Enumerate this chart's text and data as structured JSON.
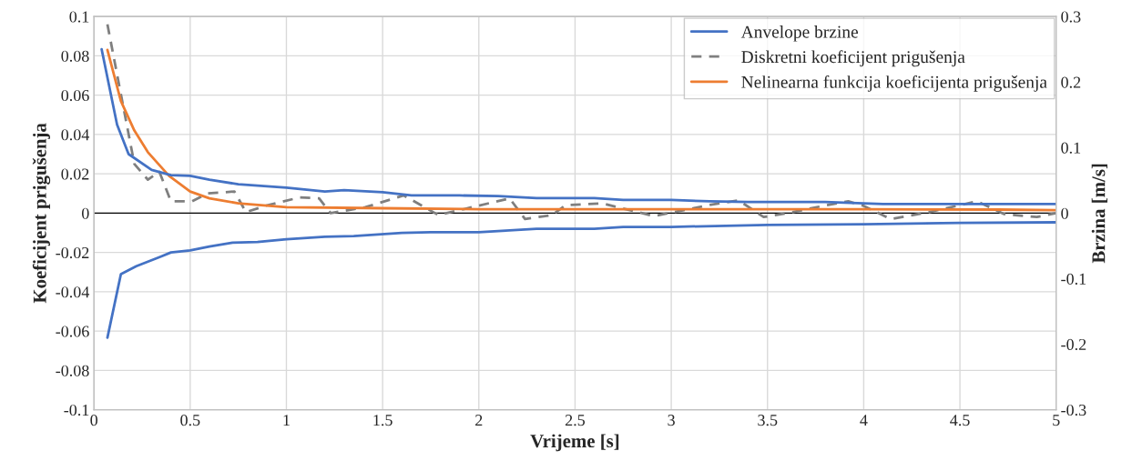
{
  "chart_data": {
    "type": "line",
    "xlabel": "Vrijeme [s]",
    "ylabel": "Koeficijent prigušenja",
    "y2label": "Brzina [m/s]",
    "xlim": [
      0,
      5
    ],
    "xticks": [
      0,
      0.5,
      1,
      1.5,
      2,
      2.5,
      3,
      3.5,
      4,
      4.5,
      5
    ],
    "ylim": [
      -0.1,
      0.1
    ],
    "yticks": [
      {
        "value": -0.1,
        "label": "-0.1"
      },
      {
        "value": -0.08,
        "label": "-0.08"
      },
      {
        "value": -0.06,
        "label": "-0.06"
      },
      {
        "value": -0.04,
        "label": "-0.04"
      },
      {
        "value": -0.02,
        "label": "-0.02"
      },
      0,
      0.02,
      0.04,
      0.06,
      0.08,
      0.1
    ],
    "y2lim": [
      -0.3,
      0.3
    ],
    "y2ticks": [
      {
        "value": -0.3,
        "label": "-0.3"
      },
      {
        "value": -0.2,
        "label": "-0.2"
      },
      {
        "value": -0.1,
        "label": "-0.1"
      },
      0,
      0.1,
      0.2,
      0.3
    ],
    "grid": true,
    "legend": "top right",
    "ref_lines": [
      {
        "axis": "y",
        "value": 0,
        "color": "#000000"
      }
    ],
    "series": [
      {
        "name": "Anvelope brzine",
        "color": "#4472c4",
        "axis": "y2",
        "line_style": "solid",
        "x": [
          0.04,
          0.12,
          0.18,
          0.3,
          0.4,
          0.5,
          0.6,
          0.75,
          0.85,
          1.0,
          1.2,
          1.3,
          1.5,
          1.65,
          1.9,
          2.1,
          2.3,
          2.5,
          2.6,
          2.75,
          3.0,
          3.2,
          3.4,
          3.8,
          4.1,
          4.3,
          4.6,
          5.0
        ],
        "values": [
          0.25,
          0.135,
          0.09,
          0.066,
          0.058,
          0.057,
          0.051,
          0.044,
          0.042,
          0.039,
          0.033,
          0.035,
          0.032,
          0.027,
          0.027,
          0.026,
          0.023,
          0.023,
          0.023,
          0.02,
          0.02,
          0.018,
          0.017,
          0.017,
          0.014,
          0.014,
          0.014,
          0.014
        ]
      },
      {
        "color": "#4472c4",
        "axis": "y2",
        "line_style": "solid",
        "x": [
          0.07,
          0.14,
          0.22,
          0.35,
          0.4,
          0.5,
          0.6,
          0.72,
          0.85,
          1.0,
          1.2,
          1.35,
          1.6,
          1.75,
          2.0,
          2.3,
          2.6,
          2.75,
          3.0,
          3.5,
          4.0,
          4.5,
          5.0
        ],
        "values": [
          -0.19,
          -0.093,
          -0.081,
          -0.066,
          -0.06,
          -0.057,
          -0.051,
          -0.045,
          -0.044,
          -0.04,
          -0.036,
          -0.035,
          -0.03,
          -0.029,
          -0.029,
          -0.024,
          -0.024,
          -0.021,
          -0.021,
          -0.018,
          -0.017,
          -0.015,
          -0.014
        ]
      },
      {
        "name": "Diskretni koeficijent prigušenja",
        "color": "#7f7f7f",
        "line_style": "dashed",
        "x": [
          0.07,
          0.21,
          0.28,
          0.34,
          0.4,
          0.51,
          0.59,
          0.73,
          0.79,
          0.9,
          1.07,
          1.17,
          1.23,
          1.41,
          1.61,
          1.79,
          2.16,
          2.24,
          2.38,
          2.45,
          2.64,
          2.91,
          3.06,
          3.19,
          3.35,
          3.48,
          3.63,
          3.79,
          3.92,
          4.0,
          4.14,
          4.34,
          4.59,
          4.73,
          4.9,
          5.0
        ],
        "values": [
          0.096,
          0.025,
          0.017,
          0.021,
          0.006,
          0.006,
          0.01,
          0.011,
          0.0005,
          0.004,
          0.008,
          0.0075,
          0,
          0.003,
          0.009,
          -0.001,
          0.0075,
          -0.003,
          -0.001,
          0.004,
          0.005,
          -0.0015,
          0.0014,
          0.004,
          0.0065,
          -0.002,
          0.0005,
          0.0037,
          0.006,
          0.0037,
          -0.003,
          0.0005,
          0.006,
          -0.0005,
          -0.002,
          0
        ]
      },
      {
        "name": "Nelinearna funkcija koeficijenta prigušenja",
        "color": "#ed7d31",
        "line_style": "solid",
        "x": [
          0.07,
          0.14,
          0.21,
          0.28,
          0.39,
          0.5,
          0.6,
          0.75,
          1.0,
          1.5,
          2.0,
          3.0,
          4.0,
          4.7,
          5.0
        ],
        "values": [
          0.083,
          0.057,
          0.042,
          0.031,
          0.019,
          0.011,
          0.0075,
          0.005,
          0.003,
          0.0025,
          0.002,
          0.002,
          0.002,
          0.0018,
          0.0015
        ]
      }
    ]
  }
}
